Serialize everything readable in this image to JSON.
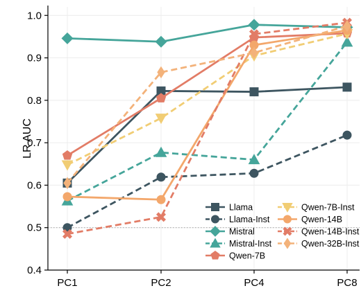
{
  "chart_data": {
    "type": "line",
    "title": "",
    "xlabel": "",
    "ylabel": "LR AUC",
    "categories": [
      "PC1",
      "PC2",
      "PC4",
      "PC8"
    ],
    "ylim": [
      0.4,
      1.02
    ],
    "yticks": [
      "0.4",
      "0.5",
      "0.6",
      "0.7",
      "0.8",
      "0.9",
      "1.0"
    ],
    "ytick_values": [
      0.4,
      0.5,
      0.6,
      0.7,
      0.8,
      0.9,
      1.0
    ],
    "grid": true,
    "reference_line": 0.5,
    "legend_position": "lower-right",
    "series": [
      {
        "name": "Llama",
        "color": "#3d5560",
        "marker": "square",
        "dashed": false,
        "values": [
          0.605,
          0.822,
          0.82,
          0.831
        ]
      },
      {
        "name": "Llama-Inst",
        "color": "#3d5560",
        "marker": "circle",
        "dashed": true,
        "values": [
          0.5,
          0.619,
          0.628,
          0.718
        ]
      },
      {
        "name": "Mistral",
        "color": "#45a59a",
        "marker": "diamond",
        "dashed": false,
        "values": [
          0.946,
          0.938,
          0.978,
          0.972
        ]
      },
      {
        "name": "Mistral-Inst",
        "color": "#45a59a",
        "marker": "triangle-up",
        "dashed": true,
        "values": [
          0.563,
          0.677,
          0.66,
          0.937
        ]
      },
      {
        "name": "Qwen-7B",
        "color": "#e27c66",
        "marker": "pentagon",
        "dashed": false,
        "values": [
          0.67,
          0.805,
          0.948,
          0.958
        ]
      },
      {
        "name": "Qwen-7B-Inst",
        "color": "#f1cd74",
        "marker": "triangle-down",
        "dashed": true,
        "values": [
          0.648,
          0.758,
          0.905,
          0.957
        ]
      },
      {
        "name": "Qwen-14B",
        "color": "#f3a76b",
        "marker": "circle",
        "dashed": false,
        "values": [
          0.573,
          0.566,
          0.93,
          0.965
        ]
      },
      {
        "name": "Qwen-14B-Inst",
        "color": "#e27c66",
        "marker": "x-diamond",
        "dashed": true,
        "values": [
          0.485,
          0.525,
          0.956,
          0.983
        ]
      },
      {
        "name": "Qwen-32B-Inst",
        "color": "#f3b27a",
        "marker": "diamond-thin",
        "dashed": true,
        "values": [
          0.605,
          0.866,
          0.912,
          0.975
        ]
      }
    ]
  }
}
